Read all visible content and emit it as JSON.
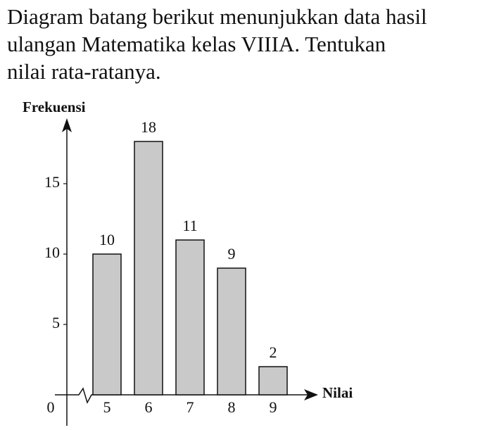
{
  "question": {
    "lines": [
      "Diagram batang berikut menunjukkan data hasil",
      "ulangan Matematika kelas VIIIA. Tentukan",
      "nilai rata-ratanya."
    ]
  },
  "chart_data": {
    "type": "bar",
    "y_label": "Frekuensi",
    "x_label": "Nilai",
    "categories": [
      "5",
      "6",
      "7",
      "8",
      "9"
    ],
    "values": [
      10,
      18,
      11,
      9,
      2
    ],
    "color": "#c9c9c9",
    "ylim": [
      0,
      19
    ],
    "yticks": [
      0,
      5,
      10,
      15
    ],
    "grid": false
  }
}
